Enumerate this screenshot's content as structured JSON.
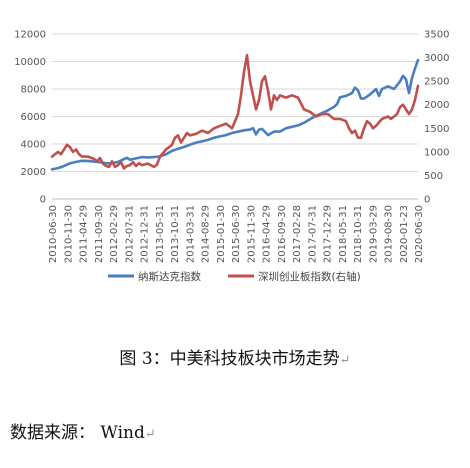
{
  "chart_data": {
    "type": "line",
    "title": "",
    "xlabel": "",
    "ylabel": "",
    "ylim": [
      0,
      12000
    ],
    "y2lim": [
      0,
      3500
    ],
    "yticks": [
      "0",
      "2000",
      "4000",
      "6000",
      "8000",
      "10000",
      "12000"
    ],
    "y2ticks": [
      "0",
      "500",
      "1000",
      "1500",
      "2000",
      "2500",
      "3000",
      "3500"
    ],
    "x_tick_labels": [
      "2010-06-30",
      "2010-11-30",
      "2011-04-29",
      "2011-09-30",
      "2012-02-29",
      "2012-07-31",
      "2012-12-31",
      "2013-05-31",
      "2013-10-31",
      "2014-03-31",
      "2014-08-29",
      "2015-01-30",
      "2015-06-30",
      "2015-11-30",
      "2016-04-29",
      "2016-09-30",
      "2017-02-28",
      "2017-07-31",
      "2017-12-29",
      "2018-05-31",
      "2018-10-31",
      "2019-03-29",
      "2019-08-30",
      "2020-01-23",
      "2020-06-30"
    ],
    "series": [
      {
        "name": "纳斯达克指数",
        "axis": "left",
        "color": "#4A7EC0",
        "points": [
          [
            0,
            2150
          ],
          [
            2,
            2250
          ],
          [
            4,
            2400
          ],
          [
            6,
            2600
          ],
          [
            8,
            2700
          ],
          [
            10,
            2780
          ],
          [
            12,
            2770
          ],
          [
            14,
            2720
          ],
          [
            16,
            2680
          ],
          [
            18,
            2600
          ],
          [
            20,
            2600
          ],
          [
            22,
            2700
          ],
          [
            24,
            2900
          ],
          [
            25,
            3000
          ],
          [
            26,
            2850
          ],
          [
            28,
            2950
          ],
          [
            30,
            3050
          ],
          [
            32,
            3020
          ],
          [
            34,
            3050
          ],
          [
            36,
            3100
          ],
          [
            38,
            3250
          ],
          [
            40,
            3500
          ],
          [
            42,
            3650
          ],
          [
            44,
            3780
          ],
          [
            46,
            3950
          ],
          [
            48,
            4100
          ],
          [
            50,
            4200
          ],
          [
            52,
            4300
          ],
          [
            54,
            4450
          ],
          [
            56,
            4550
          ],
          [
            58,
            4650
          ],
          [
            60,
            4800
          ],
          [
            62,
            4900
          ],
          [
            64,
            5000
          ],
          [
            66,
            5050
          ],
          [
            67,
            5150
          ],
          [
            68,
            4700
          ],
          [
            69,
            5050
          ],
          [
            70,
            5100
          ],
          [
            72,
            4650
          ],
          [
            74,
            4900
          ],
          [
            76,
            4900
          ],
          [
            78,
            5150
          ],
          [
            80,
            5250
          ],
          [
            82,
            5350
          ],
          [
            84,
            5550
          ],
          [
            86,
            5800
          ],
          [
            88,
            6050
          ],
          [
            90,
            6250
          ],
          [
            92,
            6450
          ],
          [
            94,
            6700
          ],
          [
            95,
            6900
          ],
          [
            96,
            7400
          ],
          [
            98,
            7500
          ],
          [
            100,
            7700
          ],
          [
            101,
            8100
          ],
          [
            102,
            7900
          ],
          [
            103,
            7300
          ],
          [
            104,
            7300
          ],
          [
            106,
            7600
          ],
          [
            108,
            8000
          ],
          [
            109,
            7500
          ],
          [
            110,
            8000
          ],
          [
            112,
            8200
          ],
          [
            114,
            8000
          ],
          [
            116,
            8550
          ],
          [
            117,
            8950
          ],
          [
            118,
            8700
          ],
          [
            119,
            7700
          ],
          [
            120,
            8800
          ],
          [
            121,
            9500
          ],
          [
            122,
            10100
          ]
        ]
      },
      {
        "name": "深圳创业板指数(右轴)",
        "axis": "right",
        "color": "#C0504D",
        "points": [
          [
            0,
            900
          ],
          [
            2,
            1000
          ],
          [
            3,
            950
          ],
          [
            4,
            1050
          ],
          [
            5,
            1150
          ],
          [
            6,
            1100
          ],
          [
            7,
            1000
          ],
          [
            8,
            1050
          ],
          [
            9,
            950
          ],
          [
            10,
            900
          ],
          [
            12,
            900
          ],
          [
            14,
            850
          ],
          [
            15,
            800
          ],
          [
            16,
            870
          ],
          [
            17,
            750
          ],
          [
            18,
            700
          ],
          [
            19,
            680
          ],
          [
            20,
            800
          ],
          [
            21,
            680
          ],
          [
            22,
            720
          ],
          [
            23,
            780
          ],
          [
            24,
            650
          ],
          [
            25,
            700
          ],
          [
            26,
            720
          ],
          [
            27,
            780
          ],
          [
            28,
            700
          ],
          [
            29,
            760
          ],
          [
            30,
            720
          ],
          [
            32,
            750
          ],
          [
            34,
            680
          ],
          [
            35,
            730
          ],
          [
            36,
            900
          ],
          [
            38,
            1050
          ],
          [
            40,
            1150
          ],
          [
            41,
            1300
          ],
          [
            42,
            1350
          ],
          [
            43,
            1200
          ],
          [
            44,
            1300
          ],
          [
            45,
            1400
          ],
          [
            46,
            1350
          ],
          [
            48,
            1380
          ],
          [
            50,
            1450
          ],
          [
            52,
            1400
          ],
          [
            54,
            1500
          ],
          [
            56,
            1550
          ],
          [
            58,
            1600
          ],
          [
            60,
            1500
          ],
          [
            62,
            1800
          ],
          [
            63,
            2200
          ],
          [
            64,
            2700
          ],
          [
            65,
            3050
          ],
          [
            66,
            2500
          ],
          [
            67,
            2200
          ],
          [
            68,
            1900
          ],
          [
            69,
            2100
          ],
          [
            70,
            2500
          ],
          [
            71,
            2600
          ],
          [
            72,
            2300
          ],
          [
            73,
            1900
          ],
          [
            74,
            2200
          ],
          [
            75,
            2100
          ],
          [
            76,
            2200
          ],
          [
            78,
            2150
          ],
          [
            80,
            2200
          ],
          [
            82,
            2150
          ],
          [
            84,
            1900
          ],
          [
            86,
            1850
          ],
          [
            88,
            1750
          ],
          [
            90,
            1800
          ],
          [
            92,
            1800
          ],
          [
            94,
            1700
          ],
          [
            96,
            1700
          ],
          [
            98,
            1650
          ],
          [
            99,
            1500
          ],
          [
            100,
            1400
          ],
          [
            101,
            1450
          ],
          [
            102,
            1300
          ],
          [
            103,
            1300
          ],
          [
            104,
            1500
          ],
          [
            105,
            1650
          ],
          [
            106,
            1600
          ],
          [
            107,
            1500
          ],
          [
            108,
            1550
          ],
          [
            110,
            1700
          ],
          [
            112,
            1750
          ],
          [
            113,
            1700
          ],
          [
            114,
            1750
          ],
          [
            115,
            1800
          ],
          [
            116,
            1950
          ],
          [
            117,
            2000
          ],
          [
            118,
            1900
          ],
          [
            119,
            1800
          ],
          [
            120,
            1900
          ],
          [
            121,
            2100
          ],
          [
            122,
            2400
          ]
        ]
      }
    ],
    "legend_position": "bottom",
    "grid": "horizontal"
  },
  "caption": "图 3：中美科技板块市场走势",
  "source": "数据来源： Wind",
  "mark": "↵"
}
